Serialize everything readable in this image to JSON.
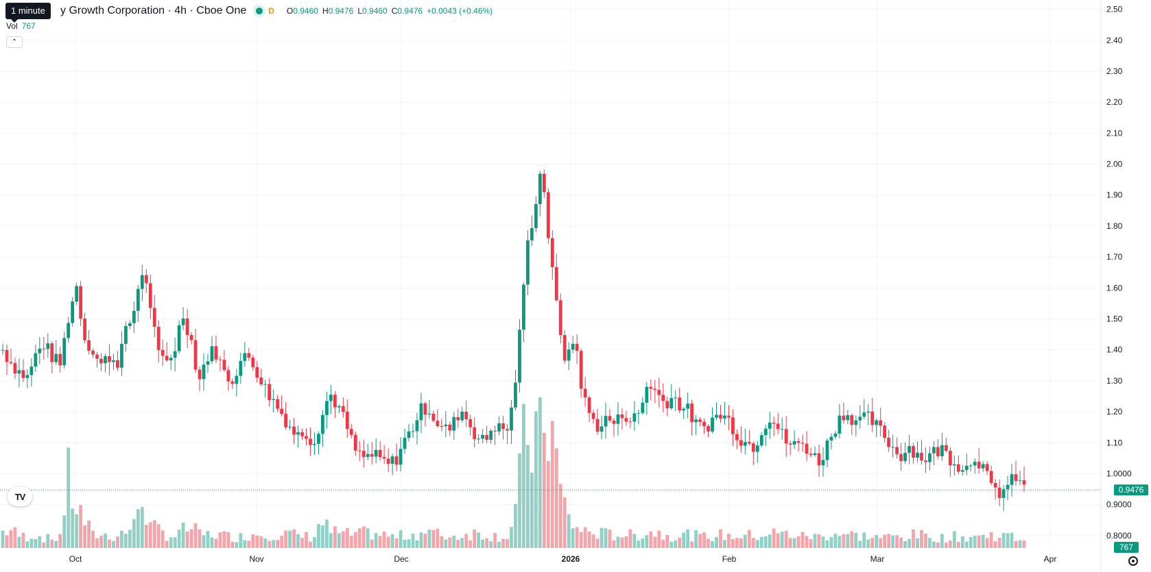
{
  "header": {
    "symbol_title": "y Growth Corporation · 4h · Cboe One",
    "interval_badge": "D",
    "tooltip": "1 minute",
    "ohlc": [
      {
        "key": "O",
        "value": "0.9460"
      },
      {
        "key": "H",
        "value": "0.9476"
      },
      {
        "key": "L",
        "value": "0.9460"
      },
      {
        "key": "C",
        "value": "0.9476"
      }
    ],
    "change": "+0.0043 (+0.46%)"
  },
  "volume_legend": {
    "label": "Vol",
    "value": "767"
  },
  "colors": {
    "up": "#089981",
    "down": "#f23645",
    "up_volume": "#8fd1c6",
    "down_volume": "#f5a4aa"
  },
  "icons": {
    "collapse": "chevron-up-icon",
    "logo": "tradingview-logo-icon",
    "settings": "gear-icon"
  },
  "logo_text": "TV",
  "chart_data": {
    "type": "candlestick",
    "price_axis": {
      "ylim": [
        0.76,
        2.53
      ],
      "ticks": [
        "0.8000",
        "0.9000",
        "1.0000",
        "1.10",
        "1.20",
        "1.30",
        "1.40",
        "1.50",
        "1.60",
        "1.70",
        "1.80",
        "1.90",
        "2.00",
        "2.10",
        "2.20",
        "2.30",
        "2.40",
        "2.50"
      ],
      "last_price_label": "0.9476",
      "last_price": 0.9476,
      "volume_label": "767"
    },
    "time_axis": [
      {
        "label": "Oct",
        "bold": false
      },
      {
        "label": "Nov",
        "bold": false
      },
      {
        "label": "Dec",
        "bold": false
      },
      {
        "label": "2026",
        "bold": true
      },
      {
        "label": "Feb",
        "bold": false
      },
      {
        "label": "Mar",
        "bold": false
      },
      {
        "label": "Apr",
        "bold": false
      }
    ],
    "anchors": [
      [
        1.4,
        240
      ],
      [
        1.36,
        260
      ],
      [
        1.33,
        180
      ],
      [
        1.31,
        170
      ],
      [
        1.38,
        200
      ],
      [
        1.42,
        150
      ],
      [
        1.38,
        130
      ],
      [
        1.35,
        170
      ],
      [
        1.5,
        1000
      ],
      [
        1.61,
        600
      ],
      [
        1.44,
        400
      ],
      [
        1.4,
        180
      ],
      [
        1.35,
        200
      ],
      [
        1.38,
        170
      ],
      [
        1.36,
        180
      ],
      [
        1.45,
        250
      ],
      [
        1.52,
        280
      ],
      [
        1.66,
        850
      ],
      [
        1.56,
        300
      ],
      [
        1.38,
        260
      ],
      [
        1.36,
        200
      ],
      [
        1.4,
        170
      ],
      [
        1.52,
        250
      ],
      [
        1.44,
        300
      ],
      [
        1.3,
        200
      ],
      [
        1.38,
        190
      ],
      [
        1.4,
        210
      ],
      [
        1.33,
        180
      ],
      [
        1.3,
        170
      ],
      [
        1.36,
        160
      ],
      [
        1.38,
        190
      ],
      [
        1.34,
        210
      ],
      [
        1.28,
        220
      ],
      [
        1.24,
        200
      ],
      [
        1.2,
        190
      ],
      [
        1.16,
        210
      ],
      [
        1.12,
        180
      ],
      [
        1.14,
        170
      ],
      [
        1.1,
        160
      ],
      [
        1.18,
        400
      ],
      [
        1.26,
        240
      ],
      [
        1.22,
        220
      ],
      [
        1.16,
        200
      ],
      [
        1.08,
        190
      ],
      [
        1.05,
        210
      ],
      [
        1.06,
        220
      ],
      [
        1.05,
        200
      ],
      [
        1.03,
        180
      ],
      [
        1.04,
        160
      ],
      [
        1.1,
        180
      ],
      [
        1.14,
        200
      ],
      [
        1.2,
        220
      ],
      [
        1.22,
        240
      ],
      [
        1.17,
        200
      ],
      [
        1.14,
        190
      ],
      [
        1.15,
        160
      ],
      [
        1.21,
        190
      ],
      [
        1.17,
        210
      ],
      [
        1.12,
        220
      ],
      [
        1.1,
        200
      ],
      [
        1.16,
        180
      ],
      [
        1.14,
        170
      ],
      [
        1.15,
        180
      ],
      [
        1.36,
        700
      ],
      [
        1.7,
        1700
      ],
      [
        1.85,
        1500
      ],
      [
        2.0,
        2000
      ],
      [
        1.7,
        1900
      ],
      [
        1.5,
        1000
      ],
      [
        1.35,
        500
      ],
      [
        1.45,
        300
      ],
      [
        1.25,
        250
      ],
      [
        1.18,
        230
      ],
      [
        1.15,
        210
      ],
      [
        1.18,
        200
      ],
      [
        1.16,
        190
      ],
      [
        1.2,
        210
      ],
      [
        1.17,
        180
      ],
      [
        1.2,
        200
      ],
      [
        1.3,
        240
      ],
      [
        1.26,
        230
      ],
      [
        1.23,
        200
      ],
      [
        1.25,
        180
      ],
      [
        1.22,
        190
      ],
      [
        1.2,
        200
      ],
      [
        1.15,
        170
      ],
      [
        1.15,
        160
      ],
      [
        1.18,
        180
      ],
      [
        1.19,
        190
      ],
      [
        1.17,
        170
      ],
      [
        1.12,
        180
      ],
      [
        1.1,
        190
      ],
      [
        1.09,
        170
      ],
      [
        1.15,
        200
      ],
      [
        1.19,
        220
      ],
      [
        1.14,
        210
      ],
      [
        1.1,
        200
      ],
      [
        1.09,
        190
      ],
      [
        1.1,
        170
      ],
      [
        1.06,
        180
      ],
      [
        1.04,
        160
      ],
      [
        1.1,
        200
      ],
      [
        1.16,
        220
      ],
      [
        1.2,
        200
      ],
      [
        1.18,
        190
      ],
      [
        1.17,
        180
      ],
      [
        1.18,
        170
      ],
      [
        1.15,
        160
      ],
      [
        1.12,
        150
      ],
      [
        1.08,
        170
      ],
      [
        1.06,
        160
      ],
      [
        1.09,
        180
      ],
      [
        1.06,
        190
      ],
      [
        1.05,
        170
      ],
      [
        1.07,
        160
      ],
      [
        1.08,
        150
      ],
      [
        1.05,
        160
      ],
      [
        1.03,
        170
      ],
      [
        1.02,
        150
      ],
      [
        1.06,
        180
      ],
      [
        1.02,
        160
      ],
      [
        0.95,
        200
      ],
      [
        0.94,
        180
      ],
      [
        0.96,
        170
      ],
      [
        0.99,
        150
      ],
      [
        0.95,
        130
      ]
    ]
  }
}
